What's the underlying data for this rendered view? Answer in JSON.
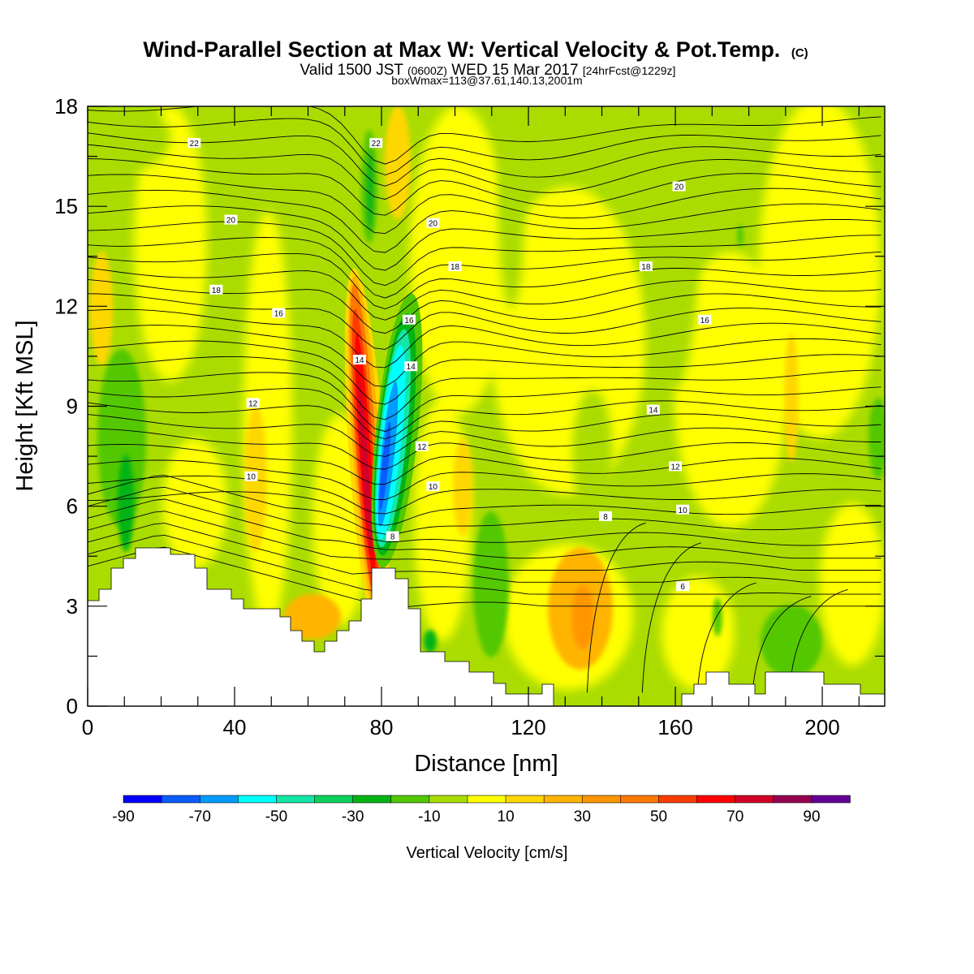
{
  "chart_data": {
    "type": "heatmap",
    "title": "Wind-Parallel Section at Max W: Vertical Velocity & Pot.Temp.",
    "title_mark": "(C)",
    "subtitle_parts": [
      "Valid 1500 JST ",
      "(0600Z)",
      " WED 15 Mar 2017 ",
      "[24hrFcst@1229z]"
    ],
    "subtitle2": "boxWmax=113@37.61,140.13,2001m",
    "xlabel": "Distance [nm]",
    "ylabel": "Height [Kft MSL]",
    "xlim": [
      0,
      217
    ],
    "ylim": [
      0,
      18
    ],
    "x_ticks": [
      "0",
      "40",
      "80",
      "120",
      "160",
      "200"
    ],
    "y_ticks": [
      "0",
      "3",
      "6",
      "9",
      "12",
      "15",
      "18"
    ],
    "colorbar": {
      "label": "Vertical Velocity [cm/s]",
      "tick_labels": [
        "-90",
        "-70",
        "-50",
        "-30",
        "-10",
        "10",
        "30",
        "50",
        "70",
        "90"
      ],
      "colors": [
        "#0000ff",
        "#0a5cff",
        "#009cff",
        "#00ffff",
        "#14e6a6",
        "#0ad25a",
        "#00b414",
        "#52c800",
        "#aadc00",
        "#ffff00",
        "#ffd700",
        "#ffb400",
        "#ff9600",
        "#ff7800",
        "#ff3c00",
        "#ff0000",
        "#d20028",
        "#960050",
        "#640096"
      ]
    },
    "contour_labels": [
      {
        "text": "22",
        "x": 29,
        "y": 16.9
      },
      {
        "text": "22",
        "x": 78.5,
        "y": 16.9
      },
      {
        "text": "20",
        "x": 39,
        "y": 14.6
      },
      {
        "text": "20",
        "x": 94,
        "y": 14.5
      },
      {
        "text": "20",
        "x": 161,
        "y": 15.6
      },
      {
        "text": "18",
        "x": 35,
        "y": 12.5
      },
      {
        "text": "18",
        "x": 100,
        "y": 13.2
      },
      {
        "text": "18",
        "x": 152,
        "y": 13.2
      },
      {
        "text": "16",
        "x": 52,
        "y": 11.8
      },
      {
        "text": "16",
        "x": 87.5,
        "y": 11.6
      },
      {
        "text": "16",
        "x": 168,
        "y": 11.6
      },
      {
        "text": "14",
        "x": 74,
        "y": 10.4
      },
      {
        "text": "14",
        "x": 88,
        "y": 10.2
      },
      {
        "text": "14",
        "x": 154,
        "y": 8.9
      },
      {
        "text": "12",
        "x": 45,
        "y": 9.1
      },
      {
        "text": "12",
        "x": 91,
        "y": 7.8
      },
      {
        "text": "12",
        "x": 160,
        "y": 7.2
      },
      {
        "text": "10",
        "x": 44.5,
        "y": 6.9
      },
      {
        "text": "10",
        "x": 94,
        "y": 6.6
      },
      {
        "text": "10",
        "x": 162,
        "y": 5.9
      },
      {
        "text": "8",
        "x": 83,
        "y": 5.1
      },
      {
        "text": "8",
        "x": 141,
        "y": 5.7
      },
      {
        "text": "6",
        "x": 162,
        "y": 3.6
      }
    ]
  }
}
